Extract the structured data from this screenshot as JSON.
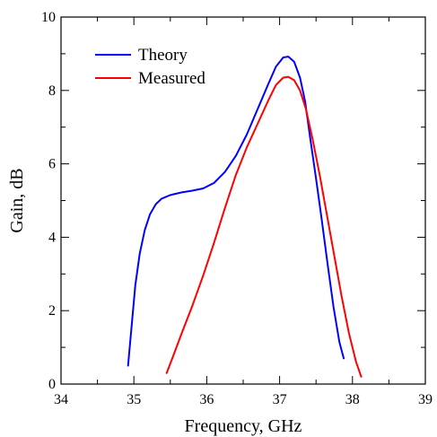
{
  "chart_data": {
    "type": "line",
    "title": "",
    "xlabel": "Frequency, GHz",
    "ylabel": "Gain, dB",
    "xlim": [
      34,
      39
    ],
    "ylim": [
      0,
      10
    ],
    "xticks": [
      34,
      35,
      36,
      37,
      38,
      39
    ],
    "yticks": [
      0,
      2,
      4,
      6,
      8,
      10
    ],
    "xtick_labels": [
      "34",
      "35",
      "36",
      "37",
      "38",
      "39"
    ],
    "ytick_labels": [
      "0",
      "2",
      "4",
      "6",
      "8",
      "10"
    ],
    "grid": false,
    "legend": {
      "location": "top-left",
      "entries": [
        "Theory",
        "Measured"
      ]
    },
    "series": [
      {
        "name": "Theory",
        "color": "#0000ff",
        "x": [
          34.92,
          34.97,
          35.02,
          35.08,
          35.15,
          35.22,
          35.3,
          35.38,
          35.5,
          35.65,
          35.8,
          35.95,
          36.1,
          36.25,
          36.4,
          36.55,
          36.7,
          36.85,
          36.95,
          37.05,
          37.12,
          37.2,
          37.28,
          37.35,
          37.42,
          37.5,
          37.58,
          37.66,
          37.74,
          37.82,
          37.88
        ],
        "y": [
          0.5,
          1.6,
          2.7,
          3.55,
          4.2,
          4.62,
          4.9,
          5.05,
          5.15,
          5.22,
          5.27,
          5.33,
          5.48,
          5.78,
          6.22,
          6.8,
          7.5,
          8.2,
          8.65,
          8.9,
          8.92,
          8.78,
          8.35,
          7.7,
          6.7,
          5.6,
          4.45,
          3.25,
          2.1,
          1.15,
          0.7
        ]
      },
      {
        "name": "Measured",
        "color": "#ff0000",
        "x": [
          35.45,
          35.55,
          35.65,
          35.8,
          35.95,
          36.1,
          36.25,
          36.4,
          36.55,
          36.7,
          36.85,
          36.95,
          37.05,
          37.12,
          37.2,
          37.28,
          37.36,
          37.45,
          37.55,
          37.65,
          37.75,
          37.85,
          37.95,
          38.05,
          38.12
        ],
        "y": [
          0.3,
          0.82,
          1.35,
          2.12,
          2.95,
          3.85,
          4.8,
          5.7,
          6.45,
          7.1,
          7.75,
          8.15,
          8.35,
          8.37,
          8.28,
          8.0,
          7.5,
          6.7,
          5.7,
          4.6,
          3.5,
          2.4,
          1.4,
          0.6,
          0.2
        ]
      }
    ]
  }
}
